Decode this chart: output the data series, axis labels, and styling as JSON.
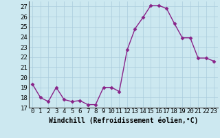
{
  "x": [
    0,
    1,
    2,
    3,
    4,
    5,
    6,
    7,
    8,
    9,
    10,
    11,
    12,
    13,
    14,
    15,
    16,
    17,
    18,
    19,
    20,
    21,
    22,
    23
  ],
  "y": [
    19.3,
    18.0,
    17.6,
    19.0,
    17.8,
    17.6,
    17.7,
    17.3,
    17.3,
    19.0,
    19.0,
    18.6,
    22.7,
    24.8,
    25.9,
    27.1,
    27.1,
    26.8,
    25.3,
    23.9,
    23.9,
    21.9,
    21.9,
    21.6
  ],
  "line_color": "#882288",
  "marker": "D",
  "markersize": 2.5,
  "linewidth": 1.0,
  "xlabel": "Windchill (Refroidissement éolien,°C)",
  "xlabel_fontsize": 7,
  "ylabel_ticks": [
    17,
    18,
    19,
    20,
    21,
    22,
    23,
    24,
    25,
    26,
    27
  ],
  "xlim": [
    -0.5,
    23.5
  ],
  "ylim": [
    17.0,
    27.5
  ],
  "bg_color": "#cce8f0",
  "grid_color": "#aaccdd",
  "tick_fontsize": 6.5,
  "spine_color": "#444444"
}
